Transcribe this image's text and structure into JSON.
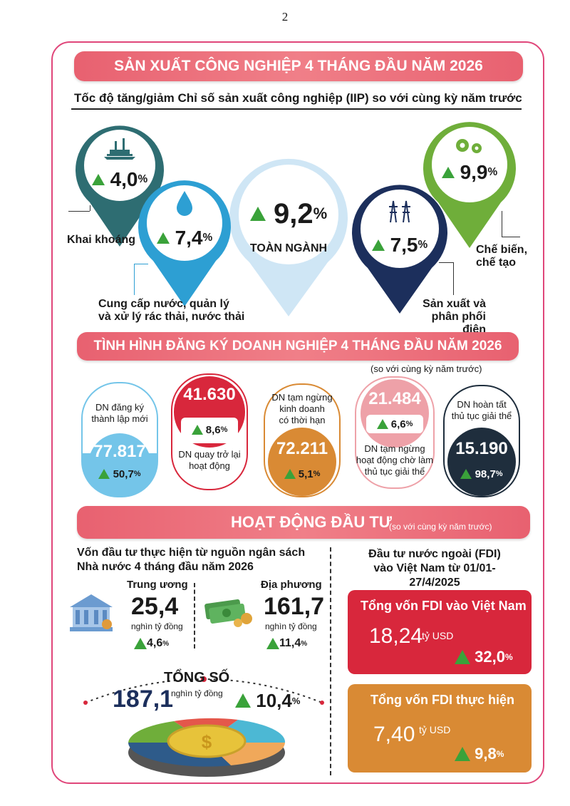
{
  "page_number": "2",
  "iip": {
    "banner": "SẢN XUẤT CÔNG NGHIỆP 4 THÁNG ĐẦU NĂM 2026",
    "subtitle": "Tốc độ tăng/giảm Chỉ số sản xuất công nghiệp (IIP) so với cùng kỳ năm trước",
    "mining": {
      "value": "4,0",
      "unit": "%",
      "label": "Khai khoáng"
    },
    "water": {
      "value": "7,4",
      "unit": "%",
      "label_line1": "Cung cấp nước, quản lý",
      "label_line2": "và xử lý rác thải, nước thải"
    },
    "total": {
      "value": "9,2",
      "unit": "%",
      "label": "TOÀN NGÀNH"
    },
    "electricity": {
      "value": "7,5",
      "unit": "%",
      "label_line1": "Sản xuất và",
      "label_line2": "phân phối điện"
    },
    "manufacturing": {
      "value": "9,9",
      "unit": "%",
      "label_line1": "Chế biến,",
      "label_line2": "chế tạo"
    }
  },
  "business": {
    "banner": "TÌNH HÌNH ĐĂNG KÝ DOANH NGHIỆP 4 THÁNG ĐẦU NĂM 2026",
    "note": "(so với cùng kỳ năm trước)",
    "new": {
      "label_line1": "DN đăng ký",
      "label_line2": "thành lập mới",
      "value": "77.817",
      "change": "50,7",
      "unit": "%"
    },
    "returned": {
      "label_line1": "DN quay trở lại",
      "label_line2": "hoạt động",
      "value": "41.630",
      "change": "8,6",
      "unit": "%"
    },
    "suspended": {
      "label_line1": "DN tạm ngừng",
      "label_line2": "kinh doanh",
      "label_line3": "có thời hạn",
      "value": "72.211",
      "change": "5,1",
      "unit": "%"
    },
    "pending": {
      "label_line1": "DN tạm ngừng",
      "label_line2": "hoạt động chờ làm",
      "label_line3": "thủ tục giải thể",
      "value": "21.484",
      "change": "6,6",
      "unit": "%"
    },
    "dissolved": {
      "label_line1": "DN hoàn tất",
      "label_line2": "thủ tục giải thể",
      "value": "15.190",
      "change": "98,7",
      "unit": "%"
    }
  },
  "investment": {
    "banner": "HOẠT ĐỘNG ĐẦU TƯ",
    "banner_note": "(so với cùng kỳ năm trước)",
    "state_title_line1": "Vốn đầu tư thực hiện từ nguồn ngân sách",
    "state_title_line2": "Nhà nước 4 tháng đầu năm 2026",
    "central": {
      "label": "Trung ương",
      "value": "25,4",
      "unit": "nghìn tỷ đồng",
      "change": "4,6",
      "pct": "%"
    },
    "local": {
      "label": "Địa phương",
      "value": "161,7",
      "unit": "nghìn tỷ đồng",
      "change": "11,4",
      "pct": "%"
    },
    "total": {
      "label": "TỔNG SỐ",
      "value": "187,1",
      "unit": "nghìn tỷ đồng",
      "change": "10,4",
      "pct": "%"
    },
    "fdi_title_line1": "Đầu tư nước ngoài (FDI)",
    "fdi_title_line2": "vào Việt Nam từ 01/01-27/4/2025",
    "fdi_registered": {
      "label": "Tổng vốn FDI vào Việt Nam",
      "value": "18,24",
      "unit": "tỷ USD",
      "change": "32,0",
      "pct": "%"
    },
    "fdi_disbursed": {
      "label": "Tổng vốn FDI thực hiện",
      "value": "7,40",
      "unit": "tỷ USD",
      "change": "9,8",
      "pct": "%"
    }
  },
  "colors": {
    "teal": "#2e6d72",
    "blue": "#2d9fd3",
    "light_blue": "#cfe6f5",
    "navy": "#1c2f5c",
    "green": "#6fae3a",
    "red": "#d8273c",
    "orange": "#d98a34",
    "pink": "#eea1a8",
    "sky": "#74c5e9",
    "dark": "#1f2e3d",
    "up": "#3aa23a"
  }
}
